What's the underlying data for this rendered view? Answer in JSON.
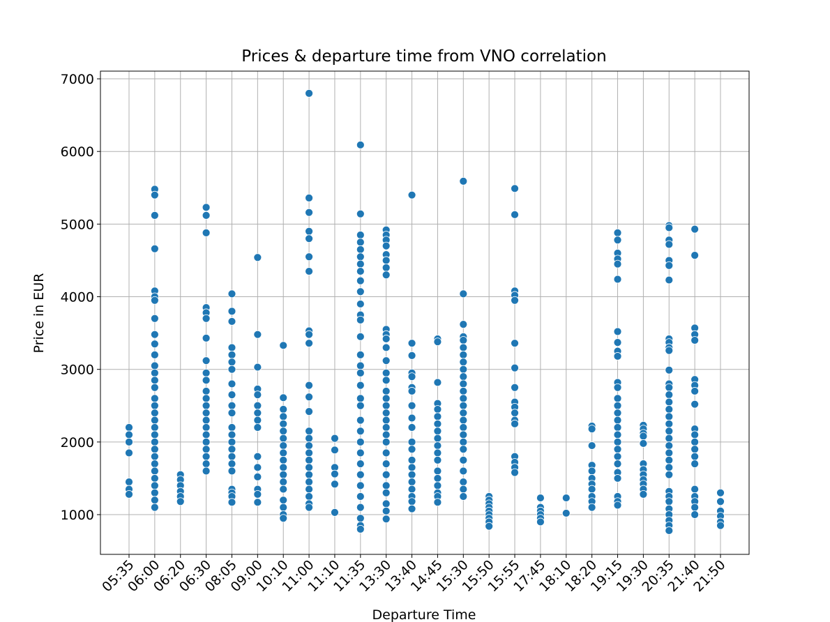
{
  "chart_data": {
    "type": "scatter",
    "title": "Prices & departure time from VNO correlation",
    "x_label": "Departure Time",
    "y_label": "Price in EUR",
    "color": "#1f77b4",
    "grid": true,
    "categories": [
      "05:35",
      "06:00",
      "06:20",
      "06:30",
      "08:05",
      "09:00",
      "10:10",
      "11:00",
      "11:10",
      "11:35",
      "13:30",
      "13:40",
      "14:45",
      "15:30",
      "15:50",
      "15:55",
      "17:45",
      "18:10",
      "18:20",
      "19:15",
      "19:30",
      "20:35",
      "21:40",
      "21:50"
    ],
    "values": [
      [
        2200,
        2100,
        2000,
        1850,
        1450,
        1350,
        1280
      ],
      [
        5480,
        5400,
        5120,
        4660,
        4080,
        4000,
        3950,
        3700,
        3480,
        3350,
        3200,
        3050,
        2950,
        2850,
        2750,
        2600,
        2500,
        2400,
        2300,
        2200,
        2100,
        2000,
        1900,
        1800,
        1700,
        1600,
        1500,
        1400,
        1300,
        1200,
        1100
      ],
      [
        1550,
        1480,
        1400,
        1320,
        1250,
        1180
      ],
      [
        5230,
        5120,
        4880,
        3850,
        3780,
        3700,
        3430,
        3120,
        2950,
        2850,
        2700,
        2600,
        2500,
        2400,
        2300,
        2200,
        2100,
        2000,
        1900,
        1800,
        1700,
        1600
      ],
      [
        4040,
        3800,
        3660,
        3300,
        3200,
        3100,
        3000,
        2800,
        2650,
        2500,
        2400,
        2200,
        2100,
        2000,
        1900,
        1800,
        1700,
        1600,
        1350,
        1300,
        1250,
        1170
      ],
      [
        4540,
        3480,
        3030,
        2730,
        2650,
        2500,
        2400,
        2300,
        2200,
        1800,
        1650,
        1520,
        1350,
        1280,
        1170
      ],
      [
        3330,
        2610,
        2450,
        2350,
        2250,
        2150,
        2050,
        1950,
        1850,
        1750,
        1650,
        1550,
        1450,
        1350,
        1200,
        1100,
        1000,
        950
      ],
      [
        6800,
        5360,
        5160,
        4900,
        4800,
        4550,
        4350,
        3530,
        3480,
        3360,
        2780,
        2620,
        2420,
        2150,
        2050,
        1950,
        1850,
        1750,
        1650,
        1550,
        1450,
        1350,
        1250,
        1150,
        1100
      ],
      [
        2050,
        1890,
        1650,
        1560,
        1420,
        1030
      ],
      [
        6090,
        5140,
        4850,
        4750,
        4650,
        4550,
        4450,
        4350,
        4220,
        4070,
        3900,
        3750,
        3680,
        3450,
        3200,
        3050,
        2950,
        2780,
        2600,
        2500,
        2300,
        2150,
        2000,
        1850,
        1700,
        1550,
        1400,
        1250,
        1100,
        950,
        850,
        800
      ],
      [
        4920,
        4850,
        4780,
        4700,
        4580,
        4500,
        4400,
        4300,
        3550,
        3480,
        3420,
        3300,
        3120,
        2950,
        2850,
        2700,
        2600,
        2500,
        2400,
        2300,
        2200,
        2100,
        2000,
        1850,
        1700,
        1550,
        1400,
        1300,
        1150,
        1050,
        940
      ],
      [
        5400,
        3360,
        3190,
        2950,
        2900,
        2750,
        2700,
        2500,
        2330,
        2200,
        2000,
        1900,
        1750,
        1650,
        1550,
        1450,
        1350,
        1250,
        1180,
        1080
      ],
      [
        3420,
        3380,
        2820,
        2530,
        2450,
        2350,
        2250,
        2150,
        2050,
        1950,
        1850,
        1750,
        1600,
        1500,
        1400,
        1300,
        1250,
        1170
      ],
      [
        5590,
        4040,
        3620,
        3450,
        3400,
        3300,
        3200,
        3100,
        3000,
        2900,
        2800,
        2700,
        2600,
        2500,
        2400,
        2300,
        2200,
        2100,
        2000,
        1900,
        1750,
        1600,
        1450,
        1350,
        1250
      ],
      [
        1250,
        1200,
        1150,
        1100,
        1050,
        1000,
        950,
        900,
        840
      ],
      [
        5490,
        5130,
        4080,
        4020,
        3950,
        3360,
        3020,
        2750,
        2550,
        2480,
        2400,
        2300,
        2250,
        1800,
        1720,
        1650,
        1580
      ],
      [
        1230,
        1100,
        1050,
        1000,
        950,
        900
      ],
      [
        1230,
        1020
      ],
      [
        2220,
        2180,
        1950,
        1680,
        1600,
        1500,
        1420,
        1350,
        1250,
        1180,
        1100
      ],
      [
        4880,
        4780,
        4600,
        4520,
        4450,
        4240,
        3520,
        3370,
        3250,
        3180,
        2820,
        2750,
        2600,
        2500,
        2400,
        2300,
        2200,
        2100,
        2000,
        1900,
        1800,
        1700,
        1580,
        1500,
        1250,
        1180,
        1130
      ],
      [
        2230,
        2180,
        2120,
        2080,
        1980,
        1700,
        1620,
        1550,
        1480,
        1420,
        1350,
        1280
      ],
      [
        4980,
        4950,
        4780,
        4720,
        4500,
        4430,
        4230,
        3420,
        3370,
        3300,
        3260,
        2990,
        2800,
        2750,
        2650,
        2550,
        2450,
        2350,
        2250,
        2150,
        2050,
        1950,
        1850,
        1750,
        1650,
        1550,
        1320,
        1250,
        1180,
        1080,
        1000,
        920,
        850,
        780
      ],
      [
        4930,
        4570,
        3570,
        3480,
        3400,
        2860,
        2780,
        2700,
        2520,
        2180,
        2100,
        2000,
        1900,
        1800,
        1700,
        1350,
        1250,
        1180,
        1100,
        1000
      ],
      [
        1300,
        1180,
        1050,
        980,
        900,
        850
      ]
    ],
    "ylim": [
      453,
      7106
    ],
    "yticks": [
      1000,
      2000,
      3000,
      4000,
      5000,
      6000,
      7000
    ]
  }
}
